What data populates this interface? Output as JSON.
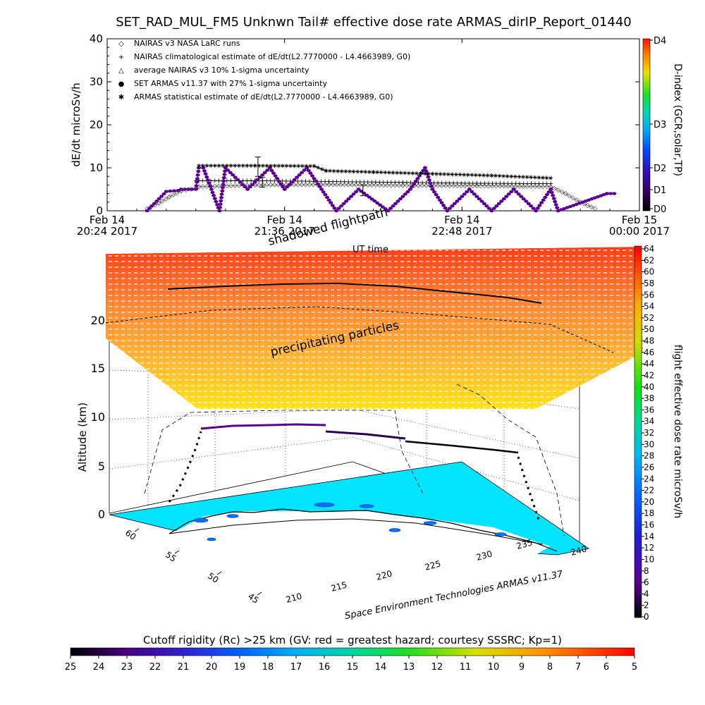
{
  "title": "SET_RAD_MUL_FM5 Unknwn Tail#  effective dose rate ARMAS_dirIP_Report_01440",
  "chart_data": [
    {
      "type": "line",
      "ylabel": "dE/dt microSv/h",
      "xlabel": "UT time",
      "ylim": [
        0,
        40
      ],
      "yticks": [
        "0",
        "10",
        "20",
        "30",
        "40"
      ],
      "xticks": [
        {
          "top": "Feb 14",
          "bottom": "20:24 2017"
        },
        {
          "top": "Feb 14",
          "bottom": "21:36 2017"
        },
        {
          "top": "Feb 14",
          "bottom": "22:48 2017"
        },
        {
          "top": "Feb 15",
          "bottom": "00:00 2017"
        }
      ],
      "legend_position": "top-left",
      "legend": [
        {
          "symbol": "◇",
          "label": "NAIRAS v3 NASA LaRC runs"
        },
        {
          "symbol": "+",
          "label": "NAIRAS climatological estimate of dE/dt(L2.7770000 - L4.4663989, G0)"
        },
        {
          "symbol": "△",
          "label": "average NAIRAS v3 10% 1-sigma uncertainty"
        },
        {
          "symbol": "●",
          "label": "SET ARMAS v11.37 with 27% 1-sigma uncertainty"
        },
        {
          "symbol": "✱",
          "label": "ARMAS statistical estimate of dE/dt(L2.7770000 - L4.4663989, G0)"
        }
      ],
      "x_hours": [
        0,
        1.2,
        2.4,
        3.6
      ],
      "series": [
        {
          "name": "NAIRAS v3 NASA LaRC runs",
          "x": [
            0.27,
            0.35,
            0.42,
            0.5,
            0.6,
            0.62,
            1.0,
            1.5,
            2.0,
            2.5,
            3.0,
            3.1,
            3.2,
            3.3
          ],
          "y": [
            0.5,
            1.8,
            3.2,
            4.6,
            5.2,
            5.6,
            6.0,
            6.1,
            5.9,
            5.8,
            5.6,
            4.0,
            2.0,
            0.5
          ]
        },
        {
          "name": "NAIRAS climatological estimate of dE/dt(L2.7770000 - L4.4663989, G0)",
          "x": [
            0.6,
            0.62,
            1.0,
            1.5,
            2.0,
            2.5,
            3.0
          ],
          "y": [
            7.0,
            7.0,
            7.0,
            6.8,
            6.6,
            6.4,
            6.3
          ]
        },
        {
          "name": "SET ARMAS v11.37 with 27% 1-sigma uncertainty",
          "x": [
            0.27,
            0.4,
            0.48,
            0.5,
            0.55,
            0.6,
            0.62,
            0.65,
            0.76,
            0.8,
            0.95,
            1.1,
            1.2,
            1.35,
            1.55,
            1.7,
            1.9,
            2.05,
            2.15,
            2.2,
            2.3,
            2.45,
            2.6,
            2.75,
            2.9,
            3.0,
            3.05,
            3.38,
            3.43
          ],
          "y": [
            0,
            4.5,
            4.7,
            5.0,
            5.0,
            5.0,
            10.0,
            10.0,
            0,
            10.0,
            5.0,
            10.0,
            5.0,
            10.0,
            0,
            5.0,
            0,
            5.0,
            10.0,
            5.0,
            0,
            5.0,
            0,
            5.0,
            0,
            5.0,
            0,
            4.0,
            4.0
          ]
        },
        {
          "name": "ARMAS statistical estimate of dE/dt(L2.7770000 - L4.4663989, G0)",
          "x": [
            0.62,
            1.0,
            1.4,
            1.48,
            1.8,
            2.2,
            2.6,
            3.0
          ],
          "y": [
            10.5,
            10.5,
            10.4,
            9.3,
            9.0,
            8.6,
            8.2,
            7.6
          ]
        }
      ],
      "error_bars": [
        {
          "x": 1.02,
          "low": 8,
          "high": 12.5
        },
        {
          "x": 1.05,
          "low": 5.5,
          "high": 7.8
        },
        {
          "x": 1.73,
          "low": 3.5,
          "high": 6.0
        }
      ],
      "colorbar": {
        "label": "D-index (GCR,solar,TP)",
        "ticks": [
          "D4",
          "D3",
          "D2",
          "D1",
          "D0"
        ]
      }
    },
    {
      "type": "scatter",
      "overlay_labels": [
        "shadowed flightpath",
        "precipitating particles"
      ],
      "zlabel": "Altitude (km)",
      "zticks": [
        "0",
        "5",
        "10",
        "15",
        "20"
      ],
      "lat_ticks": [
        "45",
        "50",
        "55",
        "60"
      ],
      "lon_ticks": [
        "210",
        "215",
        "220",
        "225",
        "230",
        "235",
        "240"
      ],
      "credit": "Space Environment Technologies ARMAS v11.37",
      "flight_altitude_km": [
        0,
        4,
        9.2,
        9.2,
        8.6,
        8.0,
        7.2,
        4,
        0
      ],
      "dose_colorbar": {
        "label": "flight effective dose rate microSv/h",
        "min": 0,
        "max": 64,
        "ticks": [
          "64",
          "62",
          "60",
          "58",
          "56",
          "54",
          "52",
          "50",
          "48",
          "46",
          "44",
          "42",
          "40",
          "38",
          "36",
          "34",
          "32",
          "30",
          "28",
          "26",
          "24",
          "22",
          "20",
          "18",
          "16",
          "14",
          "12",
          "10",
          "8",
          "6",
          "4",
          "2",
          "0"
        ]
      },
      "rc_colorbar": {
        "label": "Cutoff rigidity (Rc) >25 km (GV: red = greatest hazard; courtesy SSSRC; Kp=1)",
        "ticks": [
          "25",
          "24",
          "23",
          "22",
          "21",
          "20",
          "19",
          "18",
          "17",
          "16",
          "15",
          "14",
          "13",
          "12",
          "11",
          "10",
          "9",
          "8",
          "7",
          "6",
          "5"
        ]
      }
    }
  ]
}
